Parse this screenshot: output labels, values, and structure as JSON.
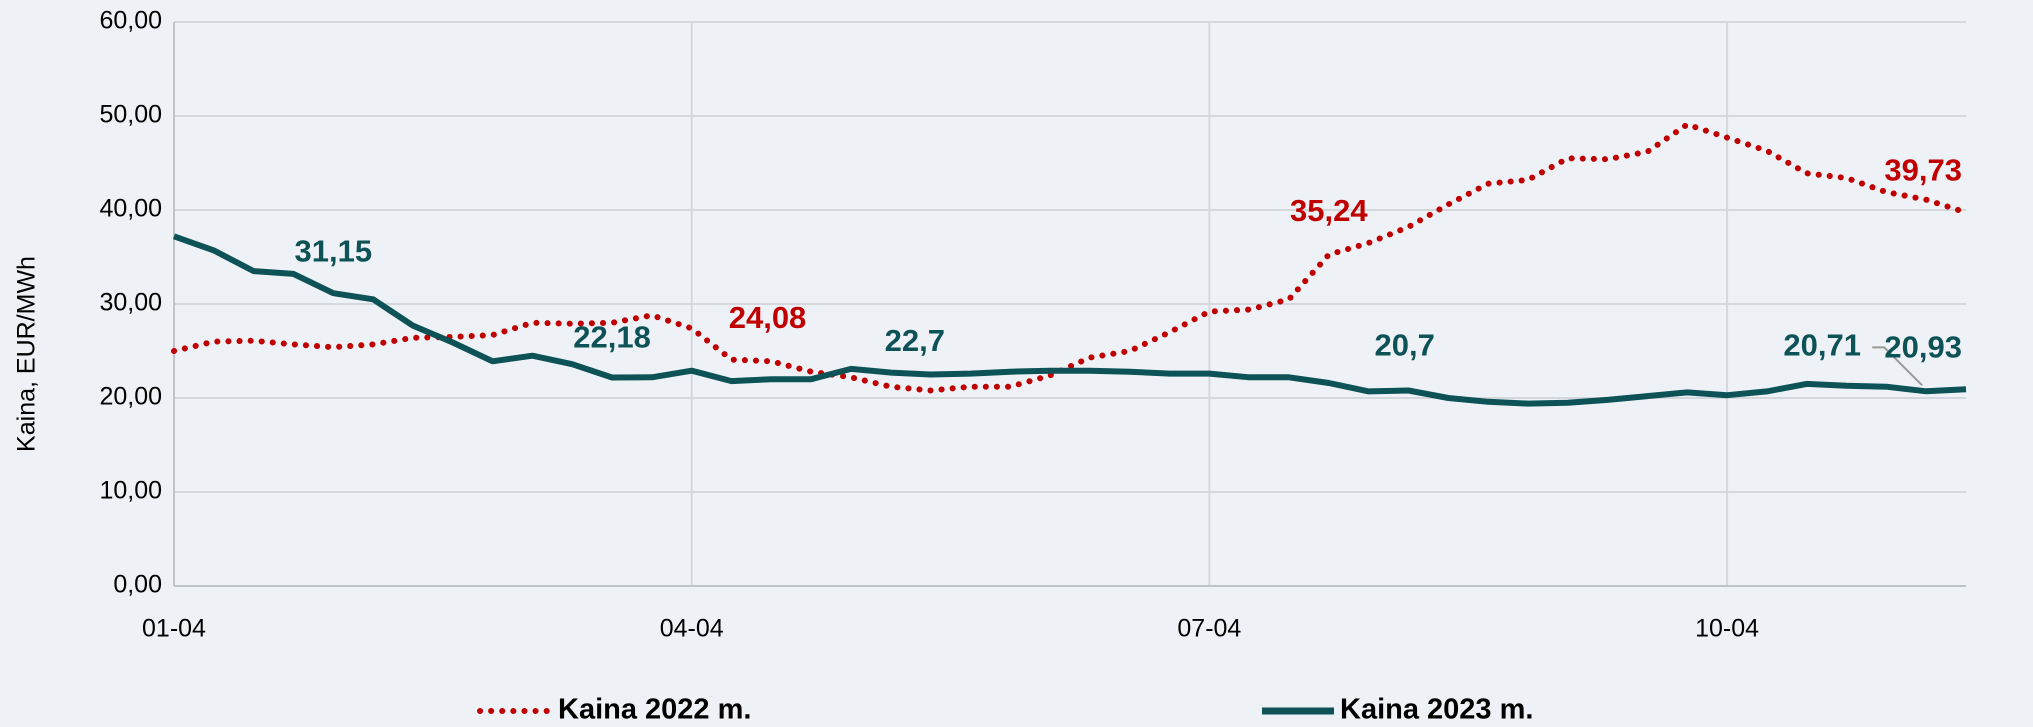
{
  "chart_data": {
    "type": "line",
    "y_label": "Kaina, EUR/MWh",
    "categories": [
      "01-04",
      null,
      null,
      null,
      null,
      null,
      null,
      null,
      null,
      null,
      null,
      null,
      null,
      "04-04",
      null,
      null,
      null,
      null,
      null,
      null,
      null,
      null,
      null,
      null,
      null,
      null,
      "07-04",
      null,
      null,
      null,
      null,
      null,
      null,
      null,
      null,
      null,
      null,
      null,
      null,
      "10-04",
      null,
      null,
      null,
      null,
      null,
      null
    ],
    "ylim": [
      0,
      60
    ],
    "yticks": [
      {
        "value": 0,
        "label": "0,00"
      },
      {
        "value": 10,
        "label": "10,00"
      },
      {
        "value": 20,
        "label": "20,00"
      },
      {
        "value": 30,
        "label": "30,00"
      },
      {
        "value": 40,
        "label": "40,00"
      },
      {
        "value": 50,
        "label": "50,00"
      },
      {
        "value": 60,
        "label": "60,00"
      }
    ],
    "grid": true,
    "legend": "bottom",
    "series": [
      {
        "name": "Kaina 2022 m.",
        "color": "#c00000",
        "style": "dotted",
        "values": [
          25.0,
          26.0,
          26.1,
          25.7,
          25.4,
          25.7,
          26.4,
          26.5,
          26.7,
          28.0,
          27.9,
          28.0,
          28.8,
          27.4,
          24.08,
          23.9,
          22.8,
          22.2,
          21.2,
          20.8,
          21.2,
          21.2,
          22.4,
          24.3,
          25.0,
          27.0,
          29.2,
          29.4,
          30.5,
          35.24,
          36.5,
          38.2,
          40.6,
          42.8,
          43.2,
          45.5,
          45.4,
          46.2,
          49.1,
          47.7,
          46.3,
          43.9,
          43.4,
          41.9,
          41.1,
          39.73
        ],
        "value_labels": [
          null,
          null,
          null,
          null,
          null,
          null,
          null,
          null,
          null,
          null,
          null,
          null,
          null,
          null,
          "24,08",
          null,
          null,
          null,
          null,
          null,
          null,
          null,
          null,
          null,
          null,
          null,
          null,
          null,
          null,
          "35,24",
          null,
          null,
          null,
          null,
          null,
          null,
          null,
          null,
          null,
          null,
          null,
          null,
          null,
          null,
          null,
          "39,73"
        ]
      },
      {
        "name": "Kaina 2023 m.",
        "color": "#0d5257",
        "style": "solid",
        "values": [
          37.2,
          35.7,
          33.5,
          33.2,
          31.15,
          30.5,
          27.7,
          25.9,
          23.9,
          24.5,
          23.6,
          22.18,
          22.2,
          22.9,
          21.8,
          22.0,
          22.0,
          23.1,
          22.7,
          22.5,
          22.6,
          22.8,
          22.9,
          22.9,
          22.8,
          22.6,
          22.6,
          22.2,
          22.2,
          21.6,
          20.7,
          20.8,
          20.0,
          19.6,
          19.4,
          19.5,
          19.8,
          20.2,
          20.6,
          20.3,
          20.7,
          21.5,
          21.3,
          21.2,
          20.71,
          20.93
        ],
        "value_labels": [
          null,
          null,
          null,
          null,
          "31,15",
          null,
          null,
          null,
          null,
          null,
          null,
          "22,18",
          null,
          null,
          null,
          null,
          null,
          null,
          "22,7",
          null,
          null,
          null,
          null,
          null,
          null,
          null,
          null,
          null,
          null,
          null,
          "20,7",
          null,
          null,
          null,
          null,
          null,
          null,
          null,
          null,
          null,
          null,
          null,
          null,
          null,
          "20,71",
          "20,93"
        ]
      }
    ]
  }
}
